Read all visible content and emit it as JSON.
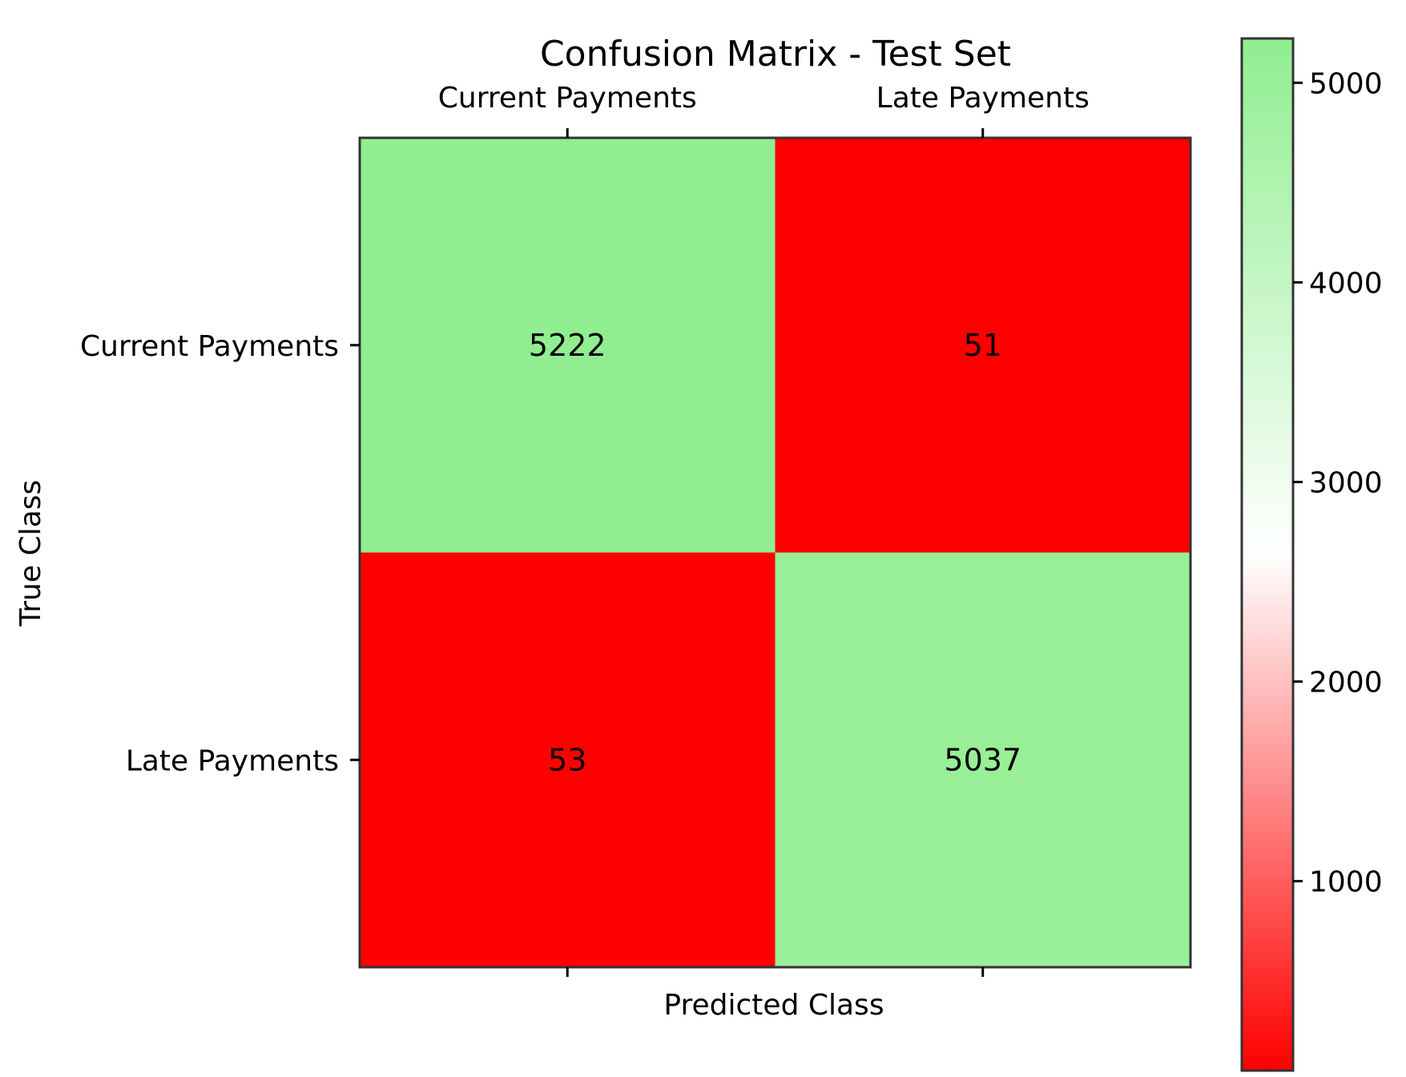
{
  "chart_data": {
    "type": "heatmap",
    "title": "Confusion Matrix - Test Set",
    "xlabel": "Predicted Class",
    "ylabel": "True Class",
    "x_categories": [
      "Current Payments",
      "Late Payments"
    ],
    "y_categories": [
      "Current Payments",
      "Late Payments"
    ],
    "values": [
      [
        5222,
        51
      ],
      [
        53,
        5037
      ]
    ],
    "cell_labels": [
      [
        "5222",
        "51"
      ],
      [
        "53",
        "5037"
      ]
    ],
    "x_tick_position": "top",
    "colorbar": {
      "ticks": [
        1000,
        2000,
        3000,
        4000,
        5000
      ],
      "tick_labels": [
        "1000",
        "2000",
        "3000",
        "4000",
        "5000"
      ],
      "range": [
        51,
        5222
      ],
      "colors": {
        "low": "#ff0000",
        "mid": "#ffffff",
        "high": "#90ee90"
      }
    },
    "grid": false
  }
}
